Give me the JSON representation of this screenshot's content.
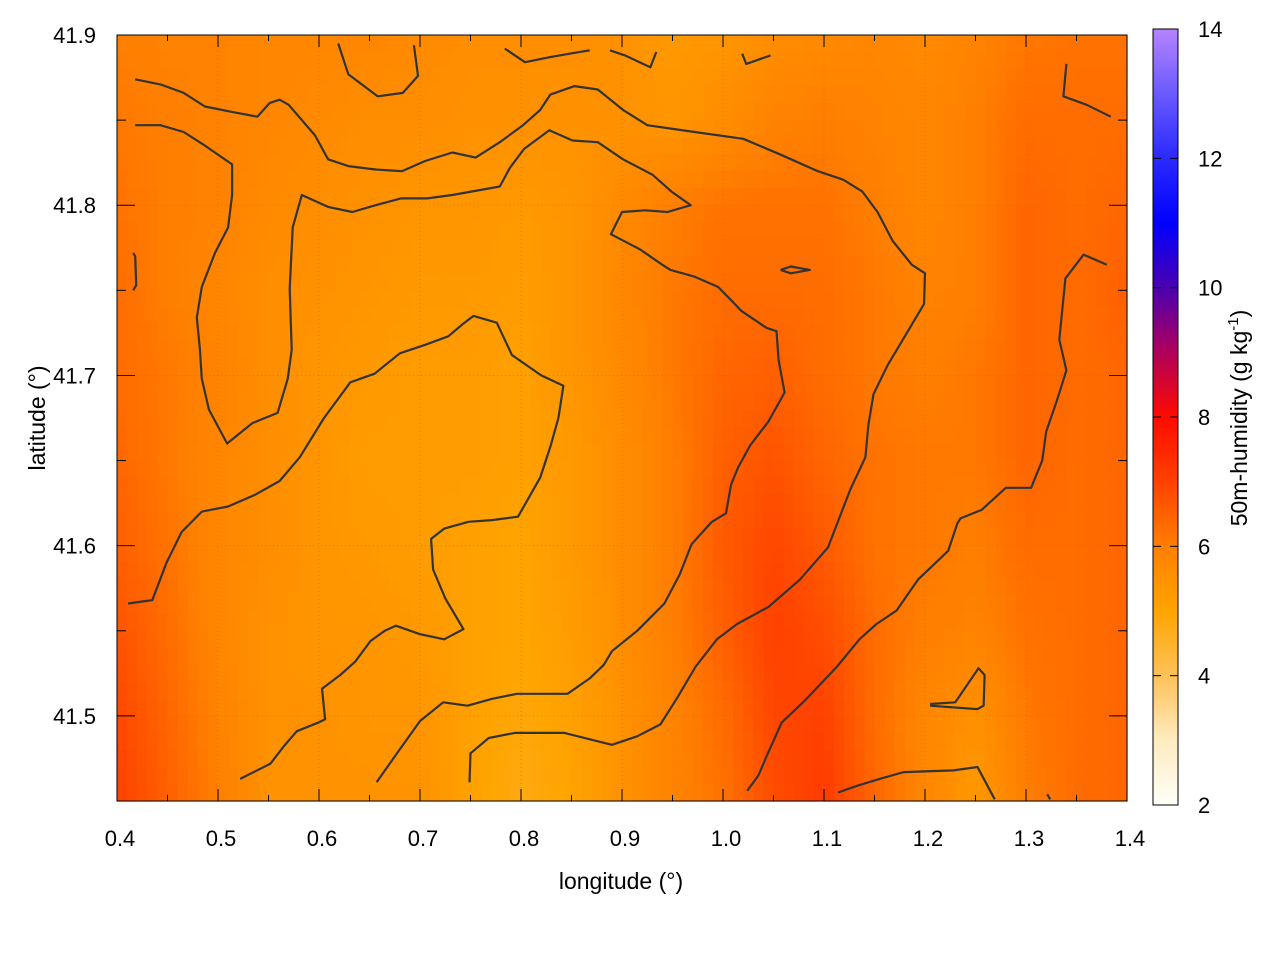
{
  "chart_data": {
    "type": "heatmap",
    "xlabel": "longitude (°)",
    "ylabel": "latitude (°)",
    "colorbar_label": "50m-humidity (g kg",
    "colorbar_label_sup": "-1",
    "colorbar_label_close": ")",
    "xlim": [
      0.4,
      1.4
    ],
    "ylim": [
      41.45,
      41.9
    ],
    "clim": [
      2,
      14
    ],
    "grid": true,
    "x_ticks": [
      "0.4",
      "0.5",
      "0.6",
      "0.7",
      "0.8",
      "0.9",
      "1.0",
      "1.1",
      "1.2",
      "1.3",
      "1.4"
    ],
    "y_ticks": [
      "41.5",
      "41.6",
      "41.7",
      "41.8",
      "41.9"
    ],
    "colorbar_ticks": [
      "2",
      "4",
      "6",
      "8",
      "10",
      "12",
      "14"
    ],
    "palette": [
      [
        2,
        "#fffff8"
      ],
      [
        3,
        "#feebc0"
      ],
      [
        4,
        "#fdc158"
      ],
      [
        5,
        "#ffa400"
      ],
      [
        6,
        "#ff7f00"
      ],
      [
        7,
        "#ff4000"
      ],
      [
        8,
        "#ff0a00"
      ],
      [
        9,
        "#b0005a"
      ],
      [
        10,
        "#4a00b0"
      ],
      [
        11,
        "#0000ff"
      ],
      [
        12,
        "#2a2aff"
      ],
      [
        13,
        "#6a5aff"
      ],
      [
        14,
        "#b583ff"
      ]
    ],
    "contour_color": "#333333",
    "grid_lon": [
      0.4,
      0.45,
      0.5,
      0.55,
      0.6,
      0.65,
      0.7,
      0.75,
      0.8,
      0.85,
      0.9,
      0.95,
      1.0,
      1.05,
      1.1,
      1.15,
      1.2,
      1.25,
      1.3,
      1.35,
      1.4
    ],
    "grid_lat": [
      41.9,
      41.85,
      41.8,
      41.75,
      41.7,
      41.65,
      41.6,
      41.55,
      41.5,
      41.45
    ],
    "values": [
      [
        6.0,
        5.9,
        5.9,
        5.8,
        5.8,
        5.8,
        5.7,
        5.6,
        5.6,
        5.6,
        5.5,
        5.3,
        5.4,
        5.6,
        5.7,
        5.8,
        5.7,
        5.9,
        6.1,
        6.2,
        6.2
      ],
      [
        6.1,
        6.0,
        5.9,
        5.8,
        5.7,
        5.6,
        5.6,
        5.5,
        5.5,
        5.5,
        5.5,
        5.4,
        5.6,
        5.9,
        6.0,
        5.9,
        5.8,
        6.0,
        6.3,
        6.3,
        6.3
      ],
      [
        6.2,
        6.0,
        5.9,
        5.7,
        5.6,
        5.5,
        5.4,
        5.4,
        5.3,
        5.4,
        5.7,
        6.0,
        6.2,
        6.2,
        6.2,
        6.0,
        5.8,
        6.0,
        6.4,
        6.3,
        6.4
      ],
      [
        6.3,
        6.0,
        5.8,
        5.6,
        5.5,
        5.4,
        5.3,
        5.3,
        5.2,
        5.4,
        5.8,
        6.1,
        6.3,
        6.3,
        6.3,
        6.1,
        5.9,
        6.0,
        6.4,
        6.3,
        6.5
      ],
      [
        6.3,
        6.1,
        5.9,
        5.6,
        5.4,
        5.3,
        5.2,
        5.2,
        5.1,
        5.4,
        5.7,
        6.1,
        6.4,
        6.5,
        6.3,
        6.1,
        6.0,
        6.1,
        6.4,
        6.3,
        6.4
      ],
      [
        6.4,
        6.1,
        5.8,
        5.6,
        5.4,
        5.2,
        5.2,
        5.2,
        5.1,
        5.3,
        5.6,
        6.0,
        6.5,
        6.7,
        6.4,
        6.2,
        6.1,
        6.1,
        6.4,
        6.3,
        6.4
      ],
      [
        6.5,
        6.2,
        5.8,
        5.6,
        5.4,
        5.3,
        5.2,
        5.1,
        5.0,
        5.3,
        5.6,
        6.0,
        6.6,
        6.9,
        6.6,
        6.2,
        6.1,
        6.0,
        6.3,
        6.3,
        6.4
      ],
      [
        6.7,
        6.3,
        5.8,
        5.5,
        5.4,
        5.4,
        5.3,
        5.1,
        5.0,
        5.2,
        5.6,
        6.0,
        6.5,
        7.0,
        6.8,
        6.3,
        6.0,
        5.9,
        6.2,
        6.3,
        6.4
      ],
      [
        6.9,
        6.4,
        5.9,
        5.5,
        5.5,
        5.4,
        5.4,
        5.1,
        4.9,
        5.1,
        5.5,
        5.9,
        6.3,
        6.9,
        7.0,
        6.3,
        5.8,
        5.5,
        6.1,
        6.3,
        6.4
      ],
      [
        7.0,
        6.5,
        6.0,
        5.5,
        5.5,
        5.5,
        5.5,
        5.1,
        4.8,
        5.0,
        5.5,
        5.9,
        6.2,
        6.8,
        7.1,
        6.4,
        5.8,
        5.3,
        6.0,
        6.3,
        6.4
      ]
    ],
    "contours": [
      [
        [
          0.418,
          41.874
        ],
        [
          0.443,
          41.871
        ],
        [
          0.466,
          41.866
        ],
        [
          0.487,
          41.858
        ],
        [
          0.512,
          41.855
        ],
        [
          0.539,
          41.852
        ],
        [
          0.551,
          41.86
        ],
        [
          0.561,
          41.862
        ],
        [
          0.57,
          41.859
        ],
        [
          0.596,
          41.841
        ],
        [
          0.609,
          41.827
        ],
        [
          0.629,
          41.823
        ],
        [
          0.656,
          41.821
        ],
        [
          0.682,
          41.82
        ],
        [
          0.705,
          41.826
        ],
        [
          0.732,
          41.831
        ],
        [
          0.755,
          41.828
        ],
        [
          0.779,
          41.837
        ],
        [
          0.802,
          41.847
        ],
        [
          0.819,
          41.856
        ],
        [
          0.829,
          41.865
        ],
        [
          0.853,
          41.87
        ],
        [
          0.876,
          41.868
        ],
        [
          0.901,
          41.856
        ],
        [
          0.925,
          41.847
        ],
        [
          0.972,
          41.843
        ],
        [
          1.02,
          41.839
        ],
        [
          1.056,
          41.83
        ],
        [
          1.094,
          41.82
        ],
        [
          1.119,
          41.815
        ],
        [
          1.138,
          41.808
        ],
        [
          1.153,
          41.796
        ],
        [
          1.168,
          41.779
        ],
        [
          1.187,
          41.765
        ],
        [
          1.2,
          41.76
        ],
        [
          1.199,
          41.742
        ],
        [
          1.187,
          41.73
        ],
        [
          1.163,
          41.706
        ],
        [
          1.149,
          41.689
        ],
        [
          1.144,
          41.671
        ],
        [
          1.141,
          41.652
        ],
        [
          1.126,
          41.633
        ],
        [
          1.104,
          41.599
        ],
        [
          1.076,
          41.58
        ],
        [
          1.045,
          41.564
        ],
        [
          1.014,
          41.554
        ],
        [
          0.994,
          41.545
        ],
        [
          0.973,
          41.529
        ],
        [
          0.955,
          41.511
        ],
        [
          0.938,
          41.495
        ],
        [
          0.915,
          41.488
        ],
        [
          0.89,
          41.483
        ],
        [
          0.843,
          41.49
        ],
        [
          0.794,
          41.49
        ],
        [
          0.768,
          41.487
        ],
        [
          0.75,
          41.478
        ],
        [
          0.749,
          41.461
        ]
      ],
      [
        [
          0.418,
          41.847
        ],
        [
          0.443,
          41.847
        ],
        [
          0.466,
          41.843
        ],
        [
          0.487,
          41.835
        ],
        [
          0.514,
          41.824
        ],
        [
          0.514,
          41.806
        ],
        [
          0.51,
          41.787
        ],
        [
          0.497,
          41.772
        ],
        [
          0.484,
          41.752
        ],
        [
          0.479,
          41.734
        ],
        [
          0.482,
          41.716
        ],
        [
          0.484,
          41.698
        ],
        [
          0.491,
          41.68
        ],
        [
          0.509,
          41.66
        ],
        [
          0.534,
          41.672
        ],
        [
          0.559,
          41.678
        ],
        [
          0.569,
          41.698
        ],
        [
          0.573,
          41.715
        ],
        [
          0.571,
          41.751
        ],
        [
          0.574,
          41.787
        ],
        [
          0.583,
          41.806
        ],
        [
          0.609,
          41.799
        ],
        [
          0.633,
          41.796
        ],
        [
          0.656,
          41.8
        ],
        [
          0.681,
          41.804
        ],
        [
          0.707,
          41.804
        ],
        [
          0.732,
          41.806
        ],
        [
          0.779,
          41.811
        ],
        [
          0.789,
          41.822
        ],
        [
          0.803,
          41.833
        ],
        [
          0.828,
          41.844
        ],
        [
          0.851,
          41.838
        ],
        [
          0.876,
          41.837
        ],
        [
          0.901,
          41.827
        ],
        [
          0.93,
          41.818
        ],
        [
          0.949,
          41.808
        ],
        [
          0.968,
          41.8
        ],
        [
          0.945,
          41.796
        ],
        [
          0.923,
          41.797
        ],
        [
          0.9,
          41.796
        ],
        [
          0.889,
          41.783
        ],
        [
          0.918,
          41.774
        ],
        [
          0.94,
          41.765
        ],
        [
          0.948,
          41.762
        ],
        [
          0.972,
          41.758
        ],
        [
          0.995,
          41.752
        ],
        [
          1.01,
          41.743
        ],
        [
          1.018,
          41.738
        ],
        [
          1.043,
          41.728
        ],
        [
          1.053,
          41.726
        ],
        [
          1.055,
          41.709
        ],
        [
          1.061,
          41.69
        ],
        [
          1.045,
          41.673
        ],
        [
          1.027,
          41.659
        ],
        [
          1.015,
          41.646
        ],
        [
          1.008,
          41.636
        ],
        [
          1.003,
          41.619
        ],
        [
          0.989,
          41.614
        ],
        [
          0.969,
          41.601
        ],
        [
          0.957,
          41.583
        ],
        [
          0.942,
          41.566
        ],
        [
          0.915,
          41.55
        ],
        [
          0.89,
          41.538
        ],
        [
          0.882,
          41.53
        ],
        [
          0.868,
          41.522
        ],
        [
          0.846,
          41.513
        ],
        [
          0.796,
          41.513
        ],
        [
          0.771,
          41.51
        ],
        [
          0.747,
          41.506
        ],
        [
          0.723,
          41.508
        ],
        [
          0.7,
          41.497
        ],
        [
          0.682,
          41.482
        ],
        [
          0.67,
          41.472
        ],
        [
          0.657,
          41.461
        ]
      ],
      [
        [
          0.411,
          41.566
        ],
        [
          0.435,
          41.568
        ],
        [
          0.449,
          41.59
        ],
        [
          0.464,
          41.608
        ],
        [
          0.484,
          41.62
        ],
        [
          0.51,
          41.623
        ],
        [
          0.537,
          41.63
        ],
        [
          0.561,
          41.638
        ],
        [
          0.581,
          41.652
        ],
        [
          0.605,
          41.675
        ],
        [
          0.631,
          41.696
        ],
        [
          0.655,
          41.701
        ],
        [
          0.68,
          41.713
        ],
        [
          0.705,
          41.718
        ],
        [
          0.728,
          41.723
        ],
        [
          0.742,
          41.73
        ],
        [
          0.753,
          41.735
        ],
        [
          0.776,
          41.731
        ],
        [
          0.791,
          41.712
        ],
        [
          0.82,
          41.7
        ],
        [
          0.842,
          41.694
        ],
        [
          0.837,
          41.675
        ],
        [
          0.829,
          41.658
        ],
        [
          0.819,
          41.64
        ],
        [
          0.797,
          41.617
        ],
        [
          0.771,
          41.615
        ],
        [
          0.748,
          41.614
        ],
        [
          0.724,
          41.61
        ],
        [
          0.711,
          41.604
        ],
        [
          0.713,
          41.586
        ],
        [
          0.725,
          41.569
        ],
        [
          0.743,
          41.551
        ],
        [
          0.724,
          41.545
        ],
        [
          0.7,
          41.548
        ],
        [
          0.676,
          41.553
        ],
        [
          0.665,
          41.55
        ],
        [
          0.651,
          41.544
        ],
        [
          0.636,
          41.532
        ],
        [
          0.621,
          41.524
        ],
        [
          0.603,
          41.516
        ],
        [
          0.606,
          41.498
        ],
        [
          0.599,
          41.496
        ],
        [
          0.578,
          41.491
        ],
        [
          0.565,
          41.482
        ],
        [
          0.552,
          41.472
        ],
        [
          0.522,
          41.463
        ]
      ],
      [
        [
          1.38,
          41.765
        ],
        [
          1.357,
          41.771
        ],
        [
          1.339,
          41.757
        ],
        [
          1.333,
          41.721
        ],
        [
          1.34,
          41.703
        ],
        [
          1.331,
          41.686
        ],
        [
          1.32,
          41.667
        ],
        [
          1.316,
          41.65
        ],
        [
          1.305,
          41.634
        ],
        [
          1.28,
          41.634
        ],
        [
          1.256,
          41.621
        ],
        [
          1.235,
          41.616
        ],
        [
          1.232,
          41.613
        ],
        [
          1.223,
          41.597
        ],
        [
          1.193,
          41.58
        ],
        [
          1.172,
          41.562
        ],
        [
          1.152,
          41.554
        ],
        [
          1.135,
          41.545
        ],
        [
          1.113,
          41.529
        ],
        [
          1.081,
          41.509
        ],
        [
          1.058,
          41.496
        ],
        [
          1.043,
          41.476
        ],
        [
          1.035,
          41.465
        ],
        [
          1.024,
          41.456
        ]
      ],
      [
        [
          1.114,
          41.455
        ],
        [
          1.133,
          41.459
        ],
        [
          1.155,
          41.463
        ],
        [
          1.179,
          41.467
        ],
        [
          1.228,
          41.468
        ],
        [
          1.252,
          41.47
        ],
        [
          1.269,
          41.451
        ]
      ],
      [
        [
          1.205,
          41.507
        ],
        [
          1.23,
          41.508
        ],
        [
          1.253,
          41.528
        ],
        [
          1.259,
          41.524
        ],
        [
          1.258,
          41.506
        ],
        [
          1.252,
          41.504
        ],
        [
          1.205,
          41.506
        ]
      ],
      [
        [
          1.057,
          41.762
        ],
        [
          1.067,
          41.764
        ],
        [
          1.086,
          41.762
        ],
        [
          1.067,
          41.76
        ],
        [
          1.057,
          41.762
        ]
      ],
      [
        [
          0.619,
          41.895
        ],
        [
          0.629,
          41.877
        ],
        [
          0.658,
          41.864
        ],
        [
          0.683,
          41.866
        ],
        [
          0.698,
          41.876
        ],
        [
          0.694,
          41.894
        ]
      ],
      [
        [
          0.784,
          41.892
        ],
        [
          0.804,
          41.884
        ],
        [
          0.829,
          41.887
        ],
        [
          0.848,
          41.889
        ],
        [
          0.868,
          41.891
        ]
      ],
      [
        [
          0.888,
          41.891
        ],
        [
          0.903,
          41.888
        ],
        [
          0.928,
          41.881
        ],
        [
          0.934,
          41.89
        ]
      ],
      [
        [
          1.019,
          41.889
        ],
        [
          1.023,
          41.883
        ],
        [
          1.047,
          41.888
        ]
      ],
      [
        [
          1.34,
          41.883
        ],
        [
          1.337,
          41.864
        ],
        [
          1.36,
          41.859
        ],
        [
          1.384,
          41.852
        ]
      ],
      [
        [
          0.416,
          41.772
        ],
        [
          0.418,
          41.77
        ],
        [
          0.419,
          41.753
        ],
        [
          0.416,
          41.75
        ]
      ],
      [
        [
          1.321,
          41.454
        ],
        [
          1.324,
          41.451
        ]
      ]
    ]
  }
}
